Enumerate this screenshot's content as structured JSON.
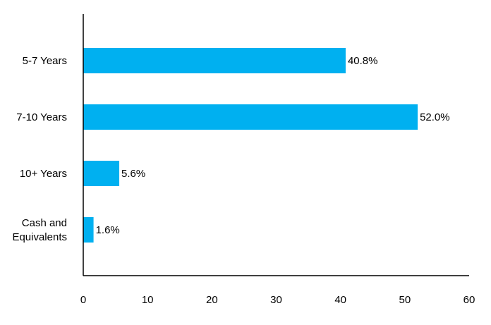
{
  "chart_data": {
    "type": "bar",
    "orientation": "horizontal",
    "categories": [
      "5-7 Years",
      "7-10 Years",
      "10+ Years",
      "Cash and Equivalents"
    ],
    "category_lines": [
      [
        "5-7 Years"
      ],
      [
        "7-10 Years"
      ],
      [
        "10+ Years"
      ],
      [
        "Cash and",
        "Equivalents"
      ]
    ],
    "values": [
      40.8,
      52.0,
      5.6,
      1.6
    ],
    "value_labels": [
      "40.8%",
      "52.0%",
      "5.6%",
      "1.6%"
    ],
    "xlim": [
      0,
      60
    ],
    "xticks": [
      0,
      10,
      20,
      30,
      40,
      50,
      60
    ],
    "title": "",
    "xlabel": "",
    "ylabel": "",
    "grid": false,
    "legend": "none",
    "bar_color": "#00B0F0",
    "axis_color": "#000000"
  }
}
